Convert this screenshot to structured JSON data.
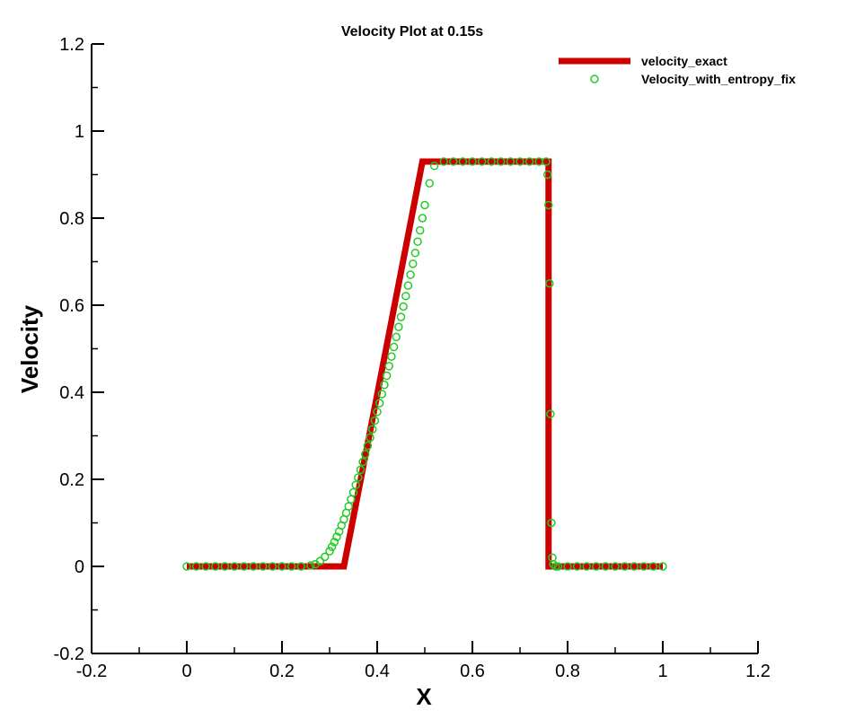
{
  "chart_data": {
    "type": "line",
    "title": "Velocity Plot at 0.15s",
    "xlabel": "X",
    "ylabel": "Velocity",
    "xlim": [
      -0.2,
      1.2
    ],
    "ylim": [
      -0.2,
      1.2
    ],
    "xticks": [
      "-0.2",
      "0",
      "0.2",
      "0.4",
      "0.6",
      "0.8",
      "1",
      "1.2"
    ],
    "yticks": [
      "-0.2",
      "0",
      "0.2",
      "0.4",
      "0.6",
      "0.8",
      "1",
      "1.2"
    ],
    "grid": false,
    "legend_position": "top-right",
    "series": [
      {
        "name": "velocity_exact",
        "style": "line",
        "color": "#cc0000",
        "x": [
          0,
          0.33,
          0.495,
          0.76,
          0.76,
          1.0
        ],
        "y": [
          0,
          0,
          0.93,
          0.93,
          0,
          0
        ]
      },
      {
        "name": "Velocity_with_entropy_fix",
        "style": "markers",
        "color": "#22cc22",
        "x": [
          0.0,
          0.02,
          0.04,
          0.06,
          0.08,
          0.1,
          0.12,
          0.14,
          0.16,
          0.18,
          0.2,
          0.22,
          0.24,
          0.26,
          0.27,
          0.28,
          0.29,
          0.3,
          0.305,
          0.31,
          0.315,
          0.32,
          0.325,
          0.33,
          0.335,
          0.34,
          0.345,
          0.35,
          0.355,
          0.36,
          0.365,
          0.37,
          0.375,
          0.38,
          0.385,
          0.39,
          0.395,
          0.4,
          0.405,
          0.41,
          0.415,
          0.42,
          0.425,
          0.43,
          0.435,
          0.44,
          0.445,
          0.45,
          0.455,
          0.46,
          0.465,
          0.47,
          0.475,
          0.48,
          0.485,
          0.49,
          0.495,
          0.5,
          0.51,
          0.52,
          0.54,
          0.56,
          0.58,
          0.6,
          0.62,
          0.64,
          0.66,
          0.68,
          0.7,
          0.72,
          0.74,
          0.755,
          0.758,
          0.76,
          0.762,
          0.764,
          0.766,
          0.768,
          0.77,
          0.775,
          0.78,
          0.8,
          0.82,
          0.84,
          0.86,
          0.88,
          0.9,
          0.92,
          0.94,
          0.96,
          0.98,
          1.0
        ],
        "y": [
          0.0,
          0.0,
          0.0,
          0.0,
          0.0,
          0.0,
          0.0,
          0.0,
          0.0,
          0.0,
          0.0,
          0.0,
          0.0,
          0.002,
          0.005,
          0.012,
          0.022,
          0.035,
          0.045,
          0.056,
          0.068,
          0.08,
          0.094,
          0.108,
          0.123,
          0.138,
          0.154,
          0.17,
          0.187,
          0.204,
          0.222,
          0.24,
          0.258,
          0.277,
          0.296,
          0.315,
          0.335,
          0.355,
          0.375,
          0.396,
          0.417,
          0.438,
          0.46,
          0.482,
          0.504,
          0.527,
          0.55,
          0.573,
          0.597,
          0.621,
          0.645,
          0.67,
          0.695,
          0.72,
          0.746,
          0.772,
          0.8,
          0.83,
          0.88,
          0.92,
          0.93,
          0.93,
          0.93,
          0.93,
          0.93,
          0.93,
          0.93,
          0.93,
          0.93,
          0.93,
          0.93,
          0.93,
          0.9,
          0.83,
          0.65,
          0.35,
          0.1,
          0.02,
          0.005,
          0.0,
          0.0,
          0.0,
          0.0,
          0.0,
          0.0,
          0.0,
          0.0,
          0.0,
          0.0,
          0.0,
          0.0,
          0.0
        ]
      }
    ]
  }
}
